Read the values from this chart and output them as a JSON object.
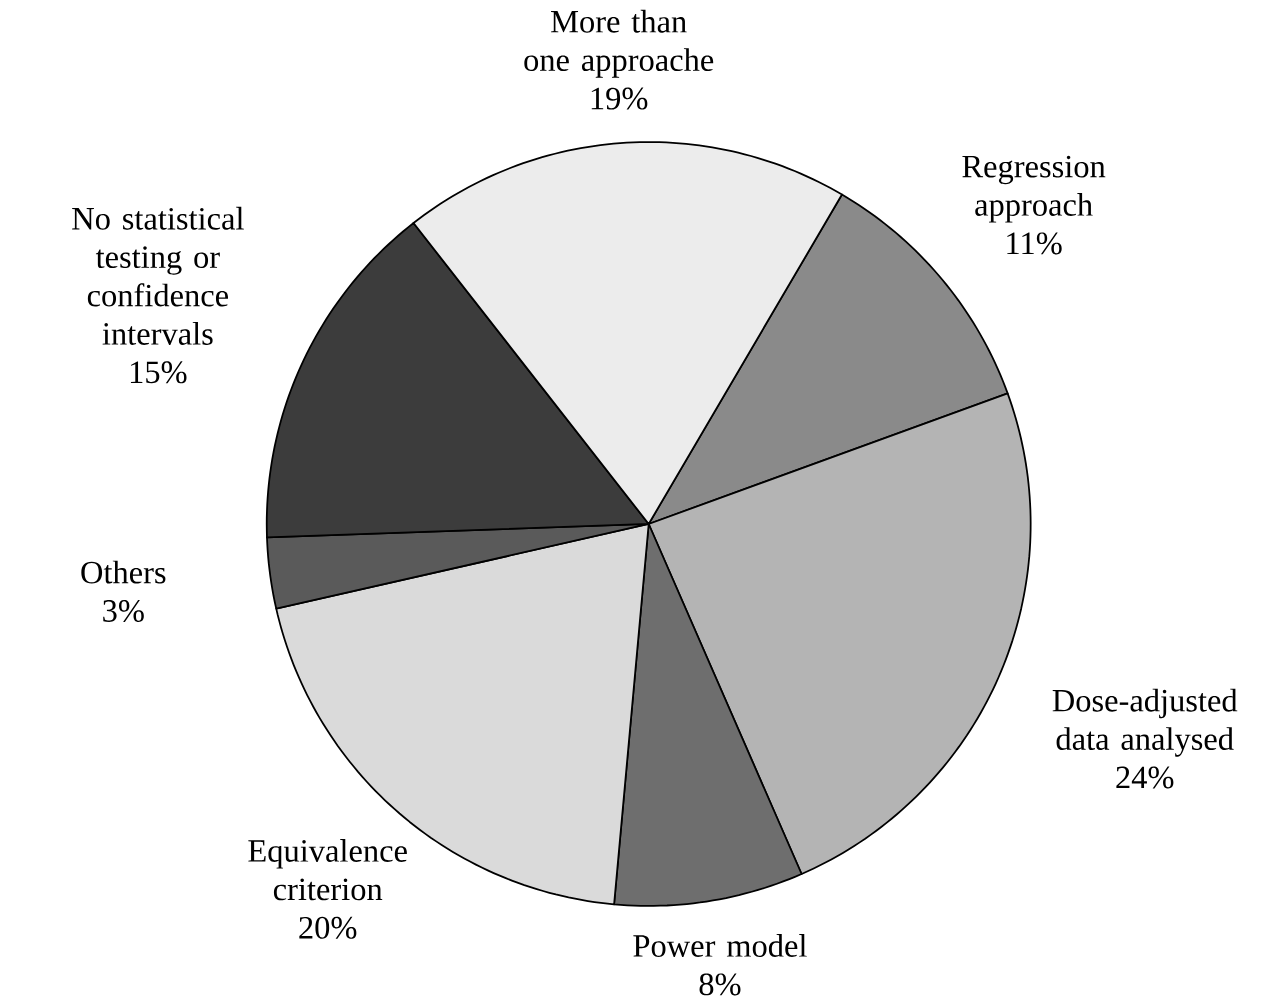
{
  "chart_data": {
    "type": "pie",
    "categories": [
      "Regression approach",
      "Dose-adjusted data analysed",
      "Power model",
      "Equivalence criterion",
      "Others",
      "No statistical testing or confidence intervals",
      "More than one approache"
    ],
    "values": [
      11,
      24,
      8,
      20,
      3,
      15,
      19
    ],
    "value_labels": [
      "11%",
      "24%",
      "8%",
      "20%",
      "3%",
      "15%",
      "19%"
    ],
    "colors": [
      "#8a8a8a",
      "#b4b4b4",
      "#6e6e6e",
      "#dadada",
      "#5a5a5a",
      "#3c3c3c",
      "#ececec"
    ]
  }
}
